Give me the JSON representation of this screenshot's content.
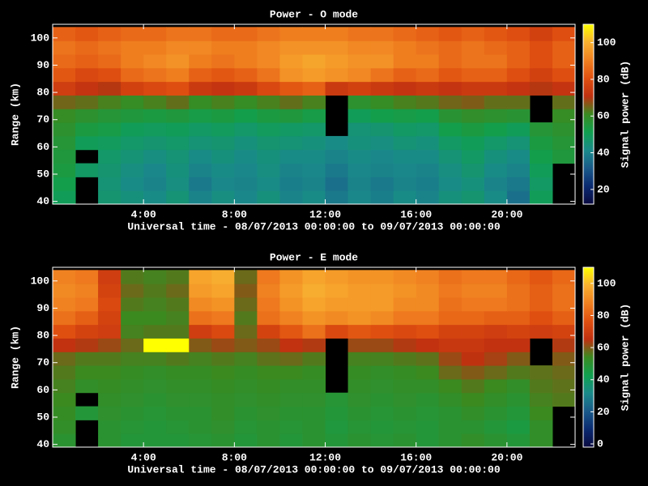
{
  "chart_data": [
    {
      "type": "heatmap",
      "title": "Power - O mode",
      "xlabel": "Universal time - 08/07/2013 00:00:00 to 09/07/2013 00:00:00",
      "ylabel": "Range (km)",
      "colorbar_label": "Signal power (dB)",
      "xlim": [
        0,
        23
      ],
      "xticks": [
        {
          "value": 4,
          "label": "4:00"
        },
        {
          "value": 8,
          "label": "8:00"
        },
        {
          "value": 12,
          "label": "12:00"
        },
        {
          "value": 16,
          "label": "16:00"
        },
        {
          "value": 20,
          "label": "20:00"
        }
      ],
      "ylim": [
        39,
        105
      ],
      "yticks": [
        40,
        50,
        60,
        70,
        80,
        90,
        100
      ],
      "clim": [
        12,
        110
      ],
      "cticks": [
        20,
        40,
        60,
        80,
        100
      ],
      "colormap": [
        "#0a0a40",
        "#0a2a70",
        "#1a5a8a",
        "#1a8a8a",
        "#10a050",
        "#3a8a20",
        "#c03010",
        "#e05010",
        "#f08020",
        "#f8b030",
        "#ffff00"
      ],
      "xbins": [
        0,
        1,
        2,
        3,
        4,
        5,
        6,
        7,
        8,
        9,
        10,
        11,
        12,
        13,
        14,
        15,
        16,
        17,
        18,
        19,
        20,
        21,
        22,
        23
      ],
      "ybins": [
        39,
        44,
        49,
        54,
        59,
        64,
        69,
        74,
        79,
        84,
        89,
        94,
        99,
        104
      ],
      "z": [
        [
          50,
          null,
          46,
          44,
          42,
          45,
          40,
          43,
          41,
          44,
          40,
          42,
          38,
          41,
          39,
          42,
          40,
          44,
          46,
          42,
          36,
          50,
          null
        ],
        [
          52,
          null,
          45,
          42,
          40,
          43,
          38,
          41,
          40,
          42,
          39,
          40,
          36,
          40,
          38,
          40,
          39,
          42,
          44,
          40,
          38,
          48,
          null
        ],
        [
          54,
          48,
          46,
          43,
          41,
          44,
          40,
          42,
          41,
          43,
          40,
          41,
          38,
          41,
          40,
          41,
          40,
          43,
          46,
          42,
          40,
          50,
          null
        ],
        [
          55,
          null,
          47,
          45,
          43,
          45,
          42,
          44,
          42,
          44,
          42,
          42,
          40,
          42,
          41,
          42,
          42,
          45,
          48,
          44,
          42,
          52,
          55
        ],
        [
          56,
          50,
          49,
          47,
          46,
          47,
          45,
          46,
          44,
          46,
          45,
          44,
          42,
          44,
          43,
          45,
          44,
          48,
          50,
          47,
          45,
          54,
          56
        ],
        [
          58,
          54,
          53,
          50,
          49,
          50,
          48,
          49,
          47,
          49,
          48,
          47,
          null,
          45,
          46,
          48,
          47,
          52,
          54,
          52,
          50,
          56,
          58
        ],
        [
          60,
          58,
          56,
          55,
          54,
          55,
          53,
          54,
          52,
          54,
          55,
          53,
          null,
          50,
          52,
          53,
          52,
          57,
          59,
          58,
          57,
          null,
          60
        ],
        [
          65,
          64,
          62,
          60,
          62,
          64,
          60,
          62,
          60,
          62,
          64,
          62,
          null,
          58,
          60,
          62,
          63,
          65,
          66,
          64,
          64,
          null,
          64
        ],
        [
          75,
          72,
          70,
          76,
          78,
          80,
          74,
          72,
          74,
          78,
          82,
          84,
          74,
          76,
          74,
          72,
          74,
          72,
          74,
          74,
          72,
          70,
          72
        ],
        [
          82,
          78,
          80,
          86,
          88,
          90,
          84,
          82,
          84,
          88,
          94,
          96,
          94,
          92,
          88,
          84,
          86,
          82,
          84,
          84,
          80,
          76,
          80
        ],
        [
          86,
          84,
          86,
          90,
          92,
          94,
          90,
          88,
          90,
          92,
          96,
          98,
          96,
          94,
          94,
          90,
          90,
          86,
          88,
          88,
          84,
          80,
          84
        ],
        [
          88,
          86,
          88,
          90,
          90,
          92,
          92,
          90,
          90,
          92,
          94,
          94,
          94,
          92,
          92,
          90,
          88,
          86,
          88,
          86,
          84,
          80,
          84
        ],
        [
          84,
          82,
          84,
          86,
          86,
          88,
          88,
          86,
          86,
          88,
          90,
          90,
          90,
          88,
          88,
          86,
          84,
          82,
          84,
          82,
          80,
          76,
          80
        ]
      ]
    },
    {
      "type": "heatmap",
      "title": "Power - E mode",
      "xlabel": "Universal time - 08/07/2013 00:00:00 to 09/07/2013 00:00:00",
      "ylabel": "Range (km)",
      "colorbar_label": "Signal power (dB)",
      "xlim": [
        0,
        23
      ],
      "xticks": [
        {
          "value": 4,
          "label": "4:00"
        },
        {
          "value": 8,
          "label": "8:00"
        },
        {
          "value": 12,
          "label": "12:00"
        },
        {
          "value": 16,
          "label": "16:00"
        },
        {
          "value": 20,
          "label": "20:00"
        }
      ],
      "ylim": [
        39,
        105
      ],
      "yticks": [
        40,
        50,
        60,
        70,
        80,
        90,
        100
      ],
      "clim": [
        -2,
        110
      ],
      "cticks": [
        0,
        20,
        40,
        60,
        80,
        100
      ],
      "colormap": [
        "#0a0a40",
        "#0a2a70",
        "#1a5a8a",
        "#1a8a8a",
        "#10a050",
        "#3a8a20",
        "#c03010",
        "#e05010",
        "#f08020",
        "#f8b030",
        "#ffff00"
      ],
      "xbins": [
        0,
        1,
        2,
        3,
        4,
        5,
        6,
        7,
        8,
        9,
        10,
        11,
        12,
        13,
        14,
        15,
        16,
        17,
        18,
        19,
        20,
        21,
        22,
        23
      ],
      "ybins": [
        39,
        44,
        49,
        54,
        59,
        64,
        69,
        74,
        79,
        84,
        89,
        94,
        99,
        104
      ],
      "z": [
        [
          50,
          null,
          50,
          48,
          48,
          48,
          49,
          50,
          48,
          50,
          48,
          50,
          48,
          50,
          49,
          50,
          48,
          50,
          52,
          50,
          48,
          52,
          null
        ],
        [
          52,
          null,
          50,
          49,
          48,
          49,
          50,
          51,
          49,
          50,
          49,
          50,
          47,
          49,
          48,
          49,
          48,
          50,
          50,
          48,
          46,
          52,
          null
        ],
        [
          53,
          48,
          51,
          50,
          49,
          50,
          50,
          52,
          50,
          51,
          50,
          50,
          48,
          50,
          49,
          50,
          49,
          50,
          52,
          50,
          48,
          54,
          null
        ],
        [
          54,
          null,
          52,
          51,
          50,
          51,
          51,
          52,
          51,
          52,
          51,
          51,
          49,
          51,
          50,
          51,
          50,
          52,
          54,
          52,
          50,
          55,
          56
        ],
        [
          55,
          52,
          53,
          52,
          51,
          52,
          52,
          53,
          52,
          53,
          52,
          52,
          null,
          52,
          51,
          52,
          52,
          54,
          56,
          54,
          52,
          56,
          57
        ],
        [
          56,
          54,
          54,
          53,
          52,
          53,
          53,
          54,
          53,
          54,
          54,
          53,
          null,
          53,
          52,
          53,
          54,
          58,
          60,
          58,
          56,
          57,
          58
        ],
        [
          58,
          56,
          56,
          55,
          55,
          56,
          55,
          56,
          55,
          57,
          58,
          56,
          null,
          55,
          55,
          56,
          57,
          62,
          65,
          63,
          60,
          null,
          60
        ],
        [
          66,
          64,
          62,
          58,
          110,
          110,
          60,
          62,
          60,
          62,
          66,
          64,
          null,
          62,
          62,
          64,
          66,
          68,
          68,
          66,
          66,
          null,
          64
        ],
        [
          76,
          72,
          70,
          55,
          56,
          56,
          70,
          74,
          58,
          72,
          78,
          84,
          74,
          78,
          76,
          74,
          76,
          72,
          72,
          70,
          72,
          70,
          72
        ],
        [
          84,
          80,
          72,
          54,
          54,
          55,
          84,
          86,
          56,
          84,
          88,
          92,
          90,
          92,
          90,
          86,
          86,
          82,
          82,
          80,
          80,
          76,
          80
        ],
        [
          88,
          86,
          74,
          56,
          55,
          56,
          90,
          92,
          58,
          86,
          92,
          96,
          94,
          94,
          94,
          90,
          90,
          84,
          86,
          86,
          84,
          80,
          84
        ],
        [
          90,
          88,
          72,
          58,
          56,
          58,
          94,
          96,
          60,
          88,
          94,
          98,
          96,
          94,
          94,
          92,
          90,
          86,
          88,
          88,
          84,
          80,
          84
        ],
        [
          88,
          86,
          70,
          56,
          55,
          56,
          96,
          98,
          58,
          86,
          92,
          96,
          94,
          92,
          92,
          90,
          88,
          84,
          86,
          86,
          82,
          78,
          82
        ]
      ]
    }
  ]
}
